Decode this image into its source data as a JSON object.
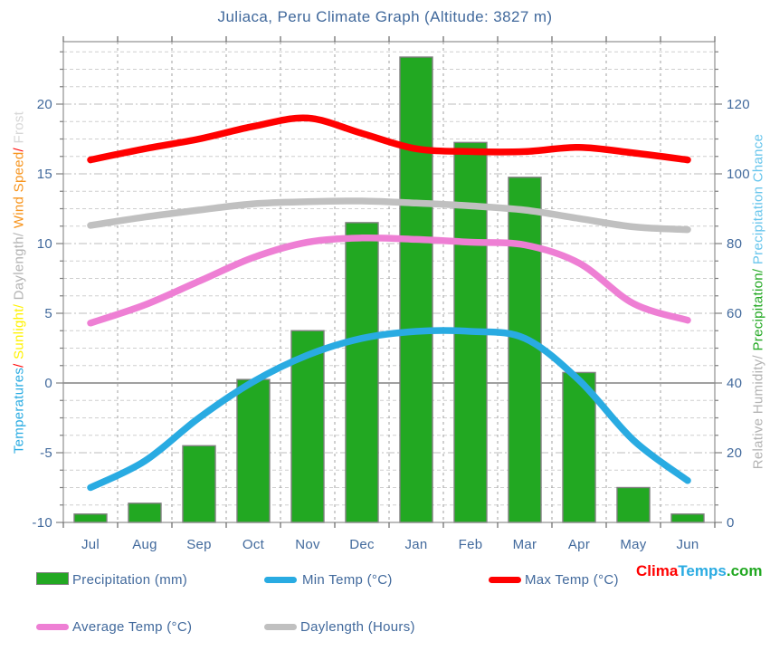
{
  "title": "Juliaca, Peru Climate Graph (Altitude: 3827 m)",
  "colors": {
    "text_blue": "#41699C",
    "grid_minor": "#CFCFCF",
    "grid_major": "#BDBDBD",
    "grid_vertical": "#A0A0A0",
    "zero_line": "#808080",
    "plot_border": "#909090",
    "bar_green": "#22A822",
    "bar_border": "#7F7F7F",
    "min_temp_blue": "#29ABE2",
    "max_temp_red": "#FF0000",
    "avg_temp_pink": "#EE7FD4",
    "daylength_gray": "#C0C0C0"
  },
  "axes": {
    "left": {
      "ticks": [
        -10,
        -5,
        0,
        5,
        10,
        15,
        20
      ],
      "label_segments": [
        {
          "text": "Temperatures",
          "color": "#29ABE2"
        },
        {
          "text": "/",
          "color": "#FF0000"
        },
        {
          "text": " Sunlight",
          "color": "#FFF200"
        },
        {
          "text": "/",
          "color": "#FFF200"
        },
        {
          "text": " Daylength",
          "color": "#B3B3B3"
        },
        {
          "text": "/",
          "color": "#B3B3B3"
        },
        {
          "text": " Wind Speed",
          "color": "#F7941D"
        },
        {
          "text": "/",
          "color": "#FF0000"
        },
        {
          "text": " Frost",
          "color": "#D6D6D6"
        }
      ]
    },
    "right": {
      "ticks": [
        0,
        20,
        40,
        60,
        80,
        100,
        120
      ],
      "label_segments": [
        {
          "text": "Relative Humidity",
          "color": "#B3B3B3"
        },
        {
          "text": "/",
          "color": "#B3B3B3"
        },
        {
          "text": " Precipitation",
          "color": "#22A822"
        },
        {
          "text": "/",
          "color": "#22A822"
        },
        {
          "text": " Precipitation Chance",
          "color": "#67C5EC"
        }
      ]
    }
  },
  "legend": {
    "precipitation": "Precipitation (mm)",
    "min_temp": "Min Temp (°C)",
    "max_temp": "Max Temp (°C)",
    "avg_temp": "Average Temp (°C)",
    "daylength": "Daylength (Hours)"
  },
  "logo_segments": [
    {
      "text": "Clima",
      "color": "#FF0000"
    },
    {
      "text": "Temps",
      "color": "#29ABE2"
    },
    {
      "text": ".com",
      "color": "#22A822"
    }
  ],
  "chart_data": {
    "type": "bar+line",
    "title": "Juliaca, Peru Climate Graph (Altitude: 3827 m)",
    "categories": [
      "Jul",
      "Aug",
      "Sep",
      "Oct",
      "Nov",
      "Dec",
      "Jan",
      "Feb",
      "Mar",
      "Apr",
      "May",
      "Jun"
    ],
    "left_axis_range": [
      -10,
      24.5
    ],
    "right_axis_range": [
      0,
      138
    ],
    "left_axis_major_step": 5,
    "right_axis_major_step": 20,
    "grid": "major dash-dot, minor dashed every 5 right-units, vertical dashed at month boundaries, solid line at 0°C",
    "legend_position": "bottom",
    "series": [
      {
        "name": "Precipitation (mm)",
        "type": "bar",
        "axis": "right",
        "color": "#22A822",
        "values": [
          2.4,
          5.5,
          22,
          41,
          55,
          86,
          133.5,
          109,
          99,
          43,
          10,
          2.4
        ]
      },
      {
        "name": "Min Temp (°C)",
        "type": "line",
        "axis": "left",
        "color": "#29ABE2",
        "values": [
          -7.5,
          -5.6,
          -2.5,
          0.1,
          2.0,
          3.2,
          3.7,
          3.7,
          3.2,
          0.2,
          -4.1,
          -7.0
        ]
      },
      {
        "name": "Max Temp (°C)",
        "type": "line",
        "axis": "left",
        "color": "#FF0000",
        "values": [
          16.0,
          16.8,
          17.5,
          18.4,
          19.0,
          17.9,
          16.8,
          16.6,
          16.6,
          16.9,
          16.5,
          16.0
        ]
      },
      {
        "name": "Average Temp (°C)",
        "type": "line",
        "axis": "left",
        "color": "#EE7FD4",
        "values": [
          4.3,
          5.6,
          7.3,
          9.0,
          10.1,
          10.4,
          10.3,
          10.1,
          9.9,
          8.6,
          5.7,
          4.5
        ]
      },
      {
        "name": "Daylength (Hours)",
        "type": "line",
        "axis": "left",
        "color": "#C0C0C0",
        "values": [
          11.3,
          11.9,
          12.4,
          12.85,
          13.0,
          13.05,
          12.9,
          12.7,
          12.4,
          11.8,
          11.2,
          11.0
        ]
      }
    ]
  }
}
